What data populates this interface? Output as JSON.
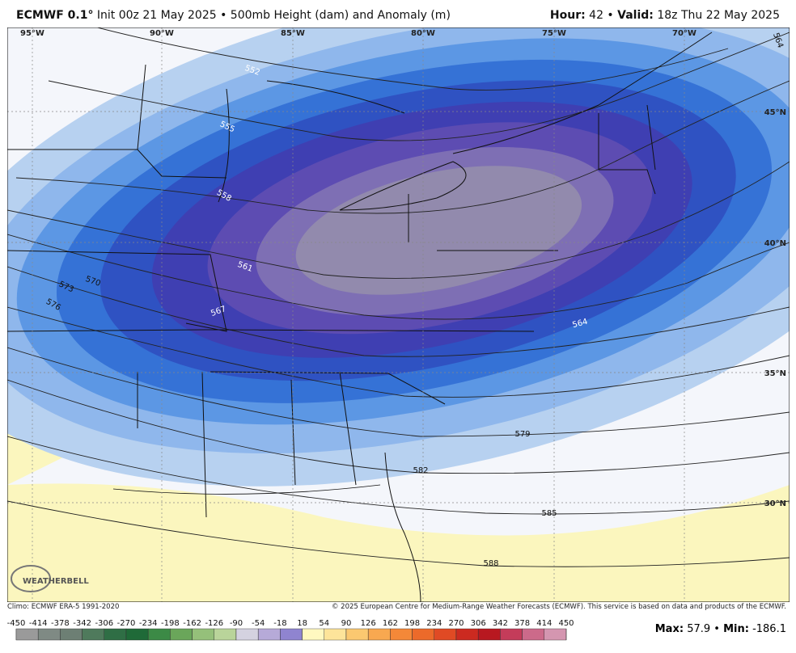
{
  "header": {
    "model": "ECMWF 0.1°",
    "info": "Init 00z 21 May 2025 • 500mb Height (dam) and Anomaly (m)",
    "hour_label": "Hour:",
    "hour": "42 •",
    "valid_label": "Valid:",
    "valid": "18z Thu 22 May 2025"
  },
  "map": {
    "longitude_labels": [
      "95°W",
      "90°W",
      "85°W",
      "80°W",
      "75°W",
      "70°W"
    ],
    "latitude_labels": [
      "45°N",
      "40°N",
      "35°N",
      "30°N"
    ],
    "contour_labels": [
      "552",
      "555",
      "558",
      "561",
      "564",
      "567",
      "570",
      "573",
      "576",
      "579",
      "582",
      "585",
      "588",
      "564"
    ],
    "logo": "WEATHERBELL"
  },
  "footer": {
    "climo": "Climo: ECMWF ERA-5 1991-2020",
    "copyright": "© 2025 European Centre for Medium-Range Weather Forecasts (ECMWF). This service is based on data and products of the ECMWF.",
    "colorbar_ticks": [
      -450,
      -414,
      -378,
      -342,
      -306,
      -270,
      -234,
      -198,
      -162,
      -126,
      -90,
      -54,
      -18,
      18,
      54,
      90,
      126,
      162,
      198,
      234,
      270,
      306,
      342,
      378,
      414,
      450
    ],
    "max_label": "Max:",
    "max": "57.9 •",
    "min_label": "Min:",
    "min": "-186.1"
  }
}
